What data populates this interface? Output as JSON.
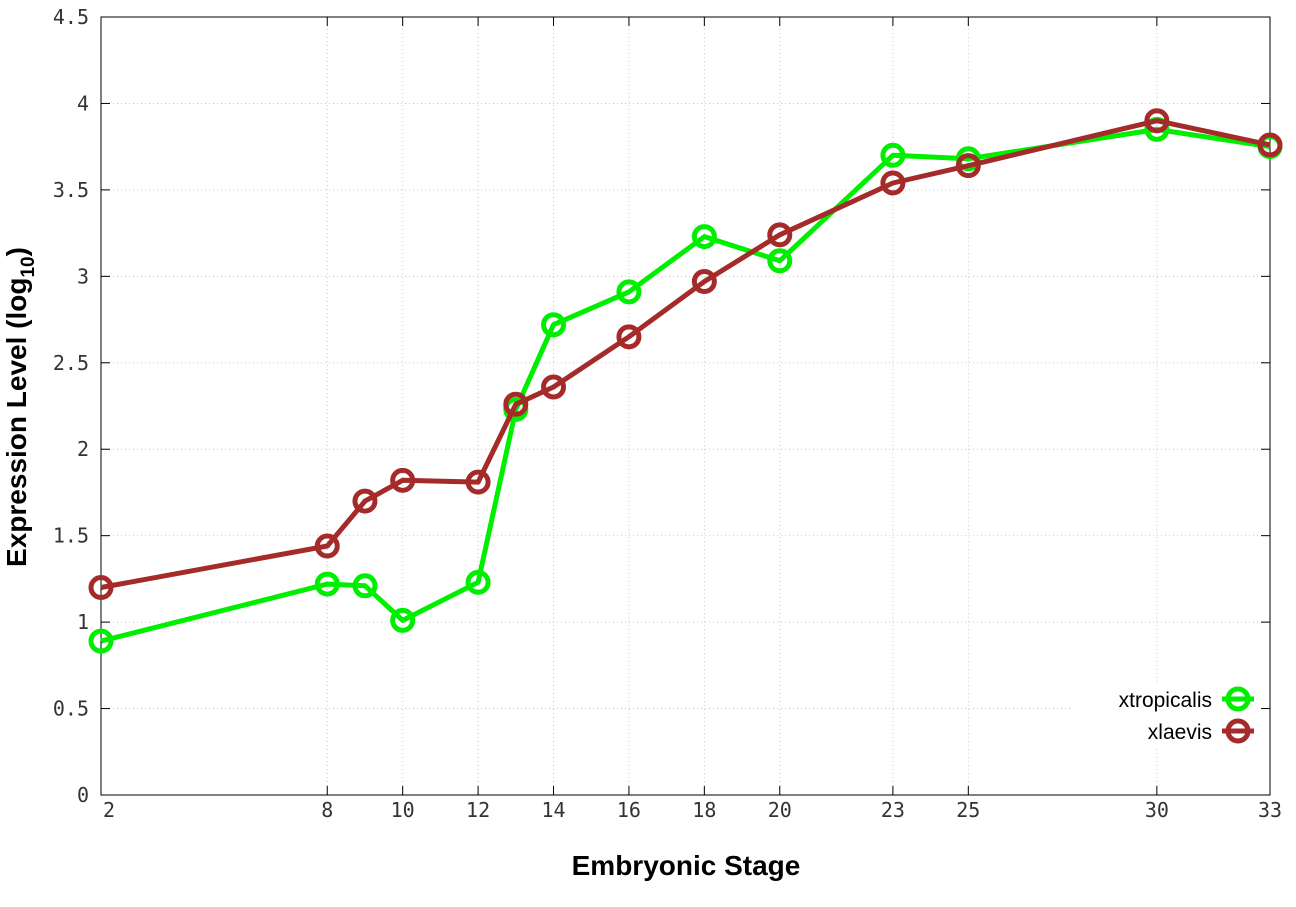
{
  "chart_data": {
    "type": "line",
    "xlabel": "Embryonic Stage",
    "ylabel_main": "Expression Level (log",
    "ylabel_sub": "10",
    "ylabel_close": ")",
    "xlim": [
      2,
      33
    ],
    "ylim": [
      0,
      4.5
    ],
    "x_ticks": [
      2,
      8,
      10,
      12,
      14,
      16,
      18,
      20,
      23,
      25,
      30,
      33
    ],
    "y_ticks": [
      0,
      0.5,
      1,
      1.5,
      2,
      2.5,
      3,
      3.5,
      4,
      4.5
    ],
    "y_tick_labels": [
      "0",
      "0.5",
      "1",
      "1.5",
      "2",
      "2.5",
      "3",
      "3.5",
      "4",
      "4.5"
    ],
    "grid": true,
    "legend_position": "bottom-right",
    "x": [
      2,
      8,
      9,
      10,
      12,
      13,
      14,
      16,
      18,
      20,
      23,
      25,
      30,
      33
    ],
    "series": [
      {
        "name": "xtropicalis",
        "color": "#00ee00",
        "values": [
          0.89,
          1.22,
          1.21,
          1.01,
          1.23,
          2.23,
          2.72,
          2.91,
          3.23,
          3.09,
          3.7,
          3.68,
          3.85,
          3.75
        ]
      },
      {
        "name": "xlaevis",
        "color": "#a52a2a",
        "values": [
          1.2,
          1.44,
          1.7,
          1.82,
          1.81,
          2.26,
          2.36,
          2.65,
          2.97,
          3.24,
          3.54,
          3.64,
          3.9,
          3.76
        ]
      }
    ]
  }
}
